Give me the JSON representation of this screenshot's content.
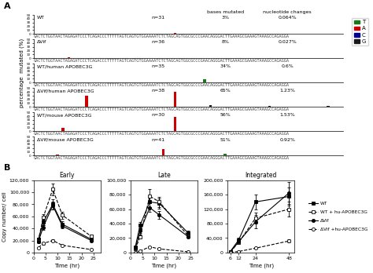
{
  "chart_data": [
    {
      "type": "bar",
      "title": "WT",
      "annotations": [
        "n=31",
        "3%",
        "0.064%"
      ],
      "sequence": "GACTCTGGTAACTAGAGATCCCTCAGACCCTTTTTAGTCAGTGTGGAAAATCTCTAGCAGTGGCGCCCGAACAGGGACTTGAAAGCGAAAGTAAAGCCAGAGGA",
      "panel_label": "A",
      "headers": [
        "bases mutated",
        "nucleotide changes"
      ],
      "legend": "upper right",
      "xlim": [
        0,
        105
      ],
      "ylim": [
        0,
        50
      ],
      "yticks": [
        0,
        10,
        20,
        30,
        40,
        50
      ],
      "tick_labels": "y",
      "series": [
        {
          "name": "T",
          "color": "#1a7a1a",
          "x": [],
          "values": []
        },
        {
          "name": "A",
          "color": "#cc0000",
          "x": [
            48
          ],
          "values": [
            1.5
          ]
        },
        {
          "name": "C",
          "color": "#00008b",
          "x": [],
          "values": []
        },
        {
          "name": "G",
          "color": "#1a1a1a",
          "x": [
            88
          ],
          "values": [
            0.5
          ]
        }
      ]
    },
    {
      "type": "bar",
      "title": "ΔVif",
      "annotations": [
        "n=36",
        "8%",
        "0.027%"
      ],
      "sequence": "GACTCTGGTAACTAGAGATCCCTCAGACCCTTTTTAGTCAGTGTGGAAAATCTCTAGCAGTGGCGCCCGAACAGGGACTTGAAAGCGAAAGTAAAGCCAGAGGA",
      "xlim": [
        0,
        105
      ],
      "ylim": [
        0,
        50
      ],
      "yticks": [
        0,
        10,
        20,
        30,
        40,
        50
      ],
      "tick_labels": "y",
      "series": [
        {
          "name": "T",
          "color": "#1a7a1a",
          "x": [],
          "values": []
        },
        {
          "name": "A",
          "color": "#cc0000",
          "x": [
            12
          ],
          "values": [
            1.5
          ]
        },
        {
          "name": "C",
          "color": "#00008b",
          "x": [],
          "values": []
        },
        {
          "name": "G",
          "color": "#1a1a1a",
          "x": [],
          "values": []
        }
      ]
    },
    {
      "type": "bar",
      "title": "WT/human APOBEC3G",
      "annotations": [
        "n=35",
        "34%",
        "0.6%"
      ],
      "sequence": "GACTCTGGTAACTAGAGATCCCTCAGACCCTTTTTAGTCAGTGTGGAAAATCTCTAGCAGTGGCGCCCGAACAGGGACTTGAAAGCGAAAGTAAAGCCAGAGGA",
      "ylabel": "percentage  mutated (%)",
      "xlim": [
        0,
        105
      ],
      "ylim": [
        0,
        50
      ],
      "yticks": [
        0,
        10,
        20,
        30,
        40,
        50
      ],
      "tick_labels": "y",
      "series": [
        {
          "name": "T",
          "color": "#1a7a1a",
          "x": [
            58
          ],
          "values": [
            8
          ]
        },
        {
          "name": "A",
          "color": "#cc0000",
          "x": [
            3,
            22
          ],
          "values": [
            1.5,
            1.5
          ]
        },
        {
          "name": "C",
          "color": "#00008b",
          "x": [],
          "values": []
        },
        {
          "name": "G",
          "color": "#1a1a1a",
          "x": [
            75,
            95
          ],
          "values": [
            1.5,
            1.5
          ]
        }
      ]
    },
    {
      "type": "bar",
      "title": "ΔVif/human APOBEC3G",
      "annotations": [
        "n=38",
        "65%",
        "1.23%"
      ],
      "sequence": "GACTCTGGTAACTAGAGATCCCTCAGACCCTTTTTAGTCAGTGTGGAAAATCTCTAGCAGTGGCGCCCGAACAGGGACTTGAAAGCGAAAGTAAAGCCAGAGGA",
      "xlim": [
        0,
        105
      ],
      "ylim": [
        0,
        50
      ],
      "yticks": [
        0,
        10,
        20,
        30,
        40,
        50
      ],
      "tick_labels": "y",
      "series": [
        {
          "name": "T",
          "color": "#1a7a1a",
          "x": [],
          "values": []
        },
        {
          "name": "A",
          "color": "#cc0000",
          "x": [
            18,
            48
          ],
          "values": [
            30,
            40
          ]
        },
        {
          "name": "C",
          "color": "#00008b",
          "x": [],
          "values": []
        },
        {
          "name": "G",
          "color": "#1a1a1a",
          "x": [
            60,
            80,
            100
          ],
          "values": [
            4,
            2,
            2
          ]
        }
      ]
    },
    {
      "type": "bar",
      "title": "WT/mouse APOBEC3G",
      "annotations": [
        "n=30",
        "56%",
        "1.53%"
      ],
      "sequence": "GACTCTGGTAACTAGAGATCCCTCAGACCCTTTTTAGTCAGTGTGGAAAATCTCTAGCAGTGGCGCCCGAACAGGGACTTGAAAGCGAAAGTAAAGCCAGAGGA",
      "xlim": [
        0,
        105
      ],
      "ylim": [
        0,
        50
      ],
      "yticks": [
        0,
        10,
        20,
        30,
        40,
        50
      ],
      "tick_labels": "y",
      "series": [
        {
          "name": "T",
          "color": "#1a7a1a",
          "x": [],
          "values": []
        },
        {
          "name": "A",
          "color": "#cc0000",
          "x": [
            10,
            48
          ],
          "values": [
            8,
            38
          ]
        },
        {
          "name": "C",
          "color": "#00008b",
          "x": [],
          "values": []
        },
        {
          "name": "G",
          "color": "#1a1a1a",
          "x": [],
          "values": []
        }
      ]
    },
    {
      "type": "bar",
      "title": "ΔVif/mouse APOBEC3G",
      "annotations": [
        "n=41",
        "51%",
        "0.92%"
      ],
      "sequence": "GACTCTGGTAACTAGAGATCCCTCAGACCCTTTTTAGTCAGTGTGGAAAATCTCTAGCAGTGGCGCCCGAACAGGGACTTGAAAGCGAAAGTAAAGCCAGAGGA",
      "xlim": [
        0,
        105
      ],
      "ylim": [
        0,
        50
      ],
      "yticks": [
        0,
        10,
        20,
        30,
        40,
        50
      ],
      "tick_labels": "y",
      "series": [
        {
          "name": "T",
          "color": "#1a7a1a",
          "x": [
            65
          ],
          "values": [
            4
          ]
        },
        {
          "name": "A",
          "color": "#cc0000",
          "x": [
            8,
            44
          ],
          "values": [
            2,
            18
          ]
        },
        {
          "name": "C",
          "color": "#00008b",
          "x": [],
          "values": []
        },
        {
          "name": "G",
          "color": "#1a1a1a",
          "x": [
            3
          ],
          "values": [
            1.5
          ]
        }
      ]
    },
    {
      "type": "line",
      "title": "Early",
      "panel_label": "B",
      "xlabel": "Time (hr)",
      "ylabel": "Copy number/ cell",
      "xlim": [
        0,
        28
      ],
      "ylim": [
        0,
        120000
      ],
      "xticks": [
        0,
        5,
        10,
        15,
        20,
        25
      ],
      "yticks": [
        0,
        {
          "value": 20000,
          "label": "20,000"
        },
        {
          "value": 40000,
          "label": "40,000"
        },
        {
          "value": 60000,
          "label": "60,000"
        },
        {
          "value": 80000,
          "label": "80,000"
        },
        {
          "value": 100000,
          "label": "100,000"
        },
        {
          "value": 120000,
          "label": "120,000"
        }
      ],
      "series": [
        {
          "name": "WT",
          "color": "black",
          "marker": "filled-square",
          "line_style": "solid",
          "x": [
            2,
            4,
            8,
            12,
            24
          ],
          "values": [
            22000,
            50000,
            80000,
            47000,
            22000
          ],
          "errors": [
            2000,
            5000,
            8000,
            5000,
            2000
          ]
        },
        {
          "name": "WT + hu-APOBEC3G",
          "color": "black",
          "marker": "open-square",
          "line_style": "dashed",
          "x": [
            2,
            4,
            8,
            12,
            24
          ],
          "values": [
            20000,
            58000,
            105000,
            62000,
            27000
          ],
          "errors": [
            3000,
            6000,
            10000,
            6000,
            3000
          ]
        },
        {
          "name": "ΔVif",
          "color": "black",
          "marker": "filled-circle",
          "line_style": "solid",
          "x": [
            2,
            4,
            8,
            12,
            24
          ],
          "values": [
            18000,
            42000,
            78000,
            44000,
            20000
          ],
          "errors": [
            2000,
            4000,
            7000,
            4000,
            2000
          ]
        },
        {
          "name": "ΔVif +hu-APOBEC3G",
          "color": "black",
          "marker": "open-circle",
          "line_style": "dashed",
          "x": [
            2,
            4,
            8,
            12,
            24
          ],
          "values": [
            8000,
            15000,
            20000,
            12000,
            5000
          ],
          "errors": [
            1000,
            1500,
            2000,
            1000,
            500
          ]
        }
      ]
    },
    {
      "type": "line",
      "title": "Late",
      "xlabel": "Time (hr)",
      "xlim": [
        0,
        28
      ],
      "ylim": [
        0,
        100000
      ],
      "xticks": [
        0,
        5,
        10,
        15,
        20,
        25
      ],
      "yticks": [
        0,
        {
          "value": 20000,
          "label": "20,000"
        },
        {
          "value": 40000,
          "label": "40,000"
        },
        {
          "value": 60000,
          "label": "60,000"
        },
        {
          "value": 80000,
          "label": "80,000"
        },
        {
          "value": 100000,
          "label": "100,000"
        }
      ],
      "series": [
        {
          "name": "WT",
          "color": "black",
          "marker": "filled-square",
          "line_style": "solid",
          "x": [
            2,
            4,
            8,
            12,
            24
          ],
          "values": [
            8000,
            38000,
            70000,
            68000,
            27000
          ],
          "errors": [
            1000,
            4000,
            7000,
            7000,
            3000
          ]
        },
        {
          "name": "WT + hu-APOBEC3G",
          "color": "black",
          "marker": "open-square",
          "line_style": "dashed",
          "x": [
            2,
            4,
            8,
            12,
            24
          ],
          "values": [
            5000,
            22000,
            78000,
            70000,
            23000
          ],
          "errors": [
            500,
            3000,
            10000,
            7000,
            2000
          ]
        },
        {
          "name": "ΔVif",
          "color": "black",
          "marker": "filled-circle",
          "line_style": "solid",
          "x": [
            2,
            4,
            8,
            12,
            24
          ],
          "values": [
            6000,
            30000,
            62000,
            52000,
            22000
          ],
          "errors": [
            800,
            3000,
            6000,
            5000,
            2000
          ]
        },
        {
          "name": "ΔVif +hu-APOBEC3G",
          "color": "black",
          "marker": "open-circle",
          "line_style": "dashed",
          "x": [
            2,
            4,
            8,
            12,
            24
          ],
          "values": [
            0,
            2000,
            8000,
            5000,
            1000
          ],
          "errors": [
            0,
            200,
            800,
            400,
            200
          ]
        }
      ]
    },
    {
      "type": "line",
      "title": "Integrated",
      "xlabel": "Time (hr)",
      "legend": "right",
      "xlim": [
        4,
        52
      ],
      "ylim": [
        0,
        200000
      ],
      "xticks": [
        6,
        12,
        24,
        48
      ],
      "yticks": [
        0,
        {
          "value": 40000,
          "label": "40,000"
        },
        {
          "value": 80000,
          "label": "80,000"
        },
        {
          "value": 120000,
          "label": "120,000"
        },
        {
          "value": 160000,
          "label": "160,000"
        },
        {
          "value": 200000,
          "label": "200,000"
        }
      ],
      "series": [
        {
          "name": "WT",
          "color": "black",
          "marker": "filled-square",
          "line_style": "solid",
          "x": [
            6,
            12,
            24,
            48
          ],
          "values": [
            3000,
            35000,
            140000,
            155000
          ],
          "errors": [
            500,
            5000,
            20000,
            25000
          ]
        },
        {
          "name": "WT + hu-APOBEC3G",
          "color": "black",
          "marker": "open-square",
          "line_style": "dashed",
          "x": [
            6,
            12,
            24,
            48
          ],
          "values": [
            2000,
            28000,
            95000,
            120000
          ],
          "errors": [
            500,
            4000,
            15000,
            20000
          ]
        },
        {
          "name": "ΔVif",
          "color": "black",
          "marker": "filled-circle",
          "line_style": "solid",
          "x": [
            6,
            12,
            24,
            48
          ],
          "values": [
            2000,
            30000,
            85000,
            165000
          ],
          "errors": [
            500,
            4000,
            18000,
            30000
          ]
        },
        {
          "name": "ΔVif +hu-APOBEC3G",
          "color": "black",
          "marker": "open-circle",
          "line_style": "dashed",
          "x": [
            6,
            12,
            24,
            48
          ],
          "values": [
            0,
            3000,
            12000,
            32000
          ],
          "errors": [
            0,
            400,
            2000,
            5000
          ]
        }
      ]
    }
  ]
}
